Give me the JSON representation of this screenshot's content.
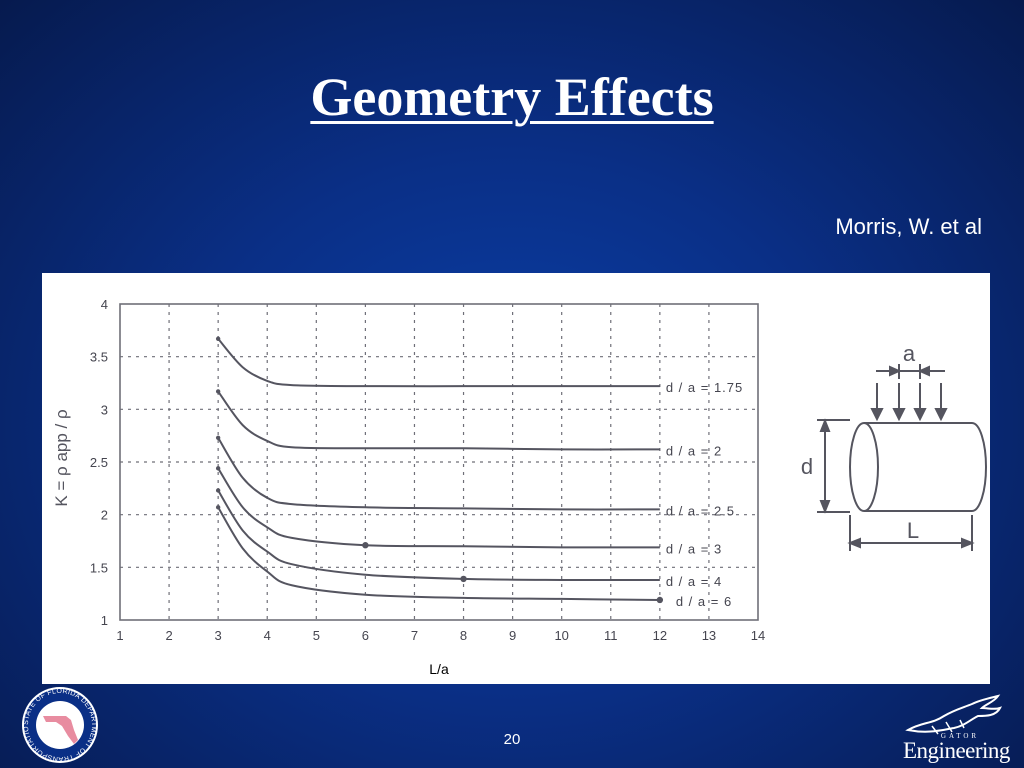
{
  "slide": {
    "title": "Geometry Effects",
    "citation": "Morris, W. et al",
    "page_number": "20"
  },
  "logos": {
    "seal_text": "STATE OF FLORIDA DEPARTMENT OF TRANSPORTATION",
    "gator_small_text": "GATOR",
    "gator_text": "Engineering"
  },
  "diagram": {
    "label_a": "a",
    "label_d": "d",
    "label_L": "L"
  },
  "chart_data": {
    "type": "line",
    "title": "",
    "xlabel": "L/a",
    "ylabel": "K = ρ app / ρ",
    "xlim": [
      1,
      14
    ],
    "ylim": [
      1,
      4
    ],
    "x_ticks": [
      "1",
      "2",
      "3",
      "4",
      "5",
      "6",
      "7",
      "8",
      "9",
      "10",
      "11",
      "12",
      "13",
      "14"
    ],
    "y_ticks": [
      "1",
      "1.5",
      "2",
      "2.5",
      "3",
      "3.5",
      "4"
    ],
    "grid": true,
    "series": [
      {
        "name": "d / a = 1.75",
        "x": [
          3,
          3.5,
          4,
          4.5,
          6,
          8,
          10,
          12
        ],
        "values": [
          3.67,
          3.4,
          3.27,
          3.23,
          3.22,
          3.22,
          3.22,
          3.22
        ]
      },
      {
        "name": "d / a = 2",
        "x": [
          3,
          3.5,
          4,
          4.5,
          6,
          8,
          10,
          12
        ],
        "values": [
          3.17,
          2.85,
          2.7,
          2.64,
          2.63,
          2.63,
          2.62,
          2.62
        ]
      },
      {
        "name": "d / a = 2.5",
        "x": [
          3,
          3.5,
          4,
          4.5,
          6,
          8,
          10,
          12
        ],
        "values": [
          2.73,
          2.35,
          2.16,
          2.1,
          2.07,
          2.06,
          2.05,
          2.05
        ]
      },
      {
        "name": "d / a = 3",
        "x": [
          3,
          3.5,
          4,
          4.5,
          6,
          8,
          10,
          12
        ],
        "values": [
          2.44,
          2.07,
          1.88,
          1.78,
          1.71,
          1.7,
          1.69,
          1.69
        ]
      },
      {
        "name": "d / a = 4",
        "x": [
          3,
          3.5,
          4,
          4.5,
          6,
          8,
          10,
          12
        ],
        "values": [
          2.23,
          1.85,
          1.65,
          1.53,
          1.43,
          1.39,
          1.38,
          1.38
        ]
      },
      {
        "name": "d / a = 6",
        "x": [
          3,
          3.5,
          4,
          4.5,
          6,
          8,
          10,
          12
        ],
        "values": [
          2.07,
          1.68,
          1.46,
          1.33,
          1.24,
          1.21,
          1.2,
          1.19
        ]
      }
    ],
    "marked_points": [
      {
        "series": "d / a = 3",
        "x": 6,
        "y": 1.71
      },
      {
        "series": "d / a = 4",
        "x": 8,
        "y": 1.39
      },
      {
        "series": "d / a = 6",
        "x": 12,
        "y": 1.19
      }
    ],
    "colors": {
      "line": "#555560",
      "grid": "#6f6f78"
    }
  }
}
